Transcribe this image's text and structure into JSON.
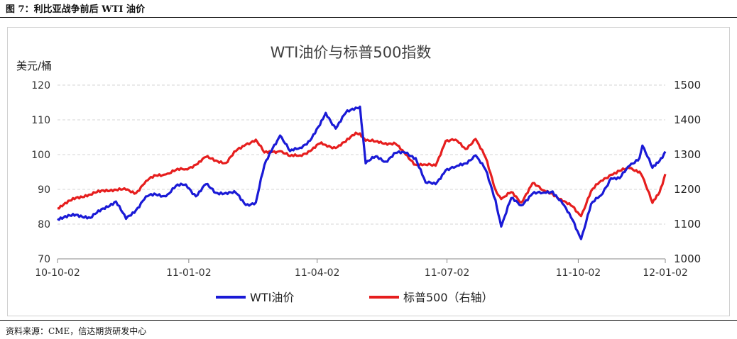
{
  "figure_label": "图 7：利比亚战争前后 WTI 油价",
  "source_note": "资料来源：CME，信达期货研发中心",
  "colors": {
    "wti": "#1a1ad6",
    "spx": "#e61e1e",
    "grid": "#d4d4d4",
    "axis": "#888888"
  },
  "chart_data": {
    "type": "line",
    "title": "WTI油价与标普500指数",
    "ylabel_left": "美元/桶",
    "ylabel_right": "",
    "ylim_left": [
      70,
      120
    ],
    "ylim_right": [
      1000,
      1500
    ],
    "yticks_left": [
      "70",
      "80",
      "90",
      "100",
      "110",
      "120"
    ],
    "yticks_right": [
      "1000",
      "1100",
      "1200",
      "1300",
      "1400",
      "1500"
    ],
    "xlim": [
      "2010-10-02",
      "2011-12-02"
    ],
    "xticks": [
      "10-10-02",
      "11-01-02",
      "11-04-02",
      "11-07-02",
      "11-10-02",
      "12-01-02"
    ],
    "grid": true,
    "legend_position": "bottom",
    "series": [
      {
        "name": "WTI油价",
        "axis": "left",
        "points": [
          [
            "2010-10-02",
            81.5
          ],
          [
            "2010-10-15",
            82.7
          ],
          [
            "2010-10-25",
            81.8
          ],
          [
            "2010-11-03",
            84.5
          ],
          [
            "2010-11-12",
            86.5
          ],
          [
            "2010-11-19",
            81.5
          ],
          [
            "2010-11-26",
            84.0
          ],
          [
            "2010-12-03",
            88.0
          ],
          [
            "2010-12-10",
            88.5
          ],
          [
            "2010-12-17",
            88.0
          ],
          [
            "2010-12-24",
            91.0
          ],
          [
            "2010-12-31",
            91.4
          ],
          [
            "2011-01-07",
            88.0
          ],
          [
            "2011-01-14",
            91.5
          ],
          [
            "2011-01-21",
            89.0
          ],
          [
            "2011-01-28",
            89.0
          ],
          [
            "2011-02-04",
            89.0
          ],
          [
            "2011-02-11",
            85.5
          ],
          [
            "2011-02-18",
            86.2
          ],
          [
            "2011-02-24",
            97.0
          ],
          [
            "2011-03-02",
            102.0
          ],
          [
            "2011-03-07",
            105.5
          ],
          [
            "2011-03-14",
            101.0
          ],
          [
            "2011-03-21",
            102.0
          ],
          [
            "2011-03-28",
            104.0
          ],
          [
            "2011-04-04",
            108.5
          ],
          [
            "2011-04-08",
            112.0
          ],
          [
            "2011-04-15",
            107.5
          ],
          [
            "2011-04-22",
            112.0
          ],
          [
            "2011-04-29",
            113.5
          ],
          [
            "2011-05-02",
            113.8
          ],
          [
            "2011-05-06",
            97.5
          ],
          [
            "2011-05-13",
            99.5
          ],
          [
            "2011-05-20",
            98.0
          ],
          [
            "2011-05-27",
            100.5
          ],
          [
            "2011-06-03",
            100.5
          ],
          [
            "2011-06-10",
            99.0
          ],
          [
            "2011-06-17",
            92.0
          ],
          [
            "2011-06-24",
            91.5
          ],
          [
            "2011-07-01",
            95.5
          ],
          [
            "2011-07-08",
            96.5
          ],
          [
            "2011-07-15",
            97.5
          ],
          [
            "2011-07-22",
            99.8
          ],
          [
            "2011-07-29",
            95.7
          ],
          [
            "2011-08-05",
            86.9
          ],
          [
            "2011-08-09",
            79.3
          ],
          [
            "2011-08-16",
            87.5
          ],
          [
            "2011-08-23",
            85.4
          ],
          [
            "2011-08-31",
            88.8
          ],
          [
            "2011-09-07",
            89.0
          ],
          [
            "2011-09-14",
            89.4
          ],
          [
            "2011-09-21",
            85.9
          ],
          [
            "2011-09-28",
            81.2
          ],
          [
            "2011-10-04",
            75.7
          ],
          [
            "2011-10-11",
            85.8
          ],
          [
            "2011-10-18",
            88.3
          ],
          [
            "2011-10-25",
            93.2
          ],
          [
            "2011-10-31",
            93.2
          ],
          [
            "2011-11-07",
            96.8
          ],
          [
            "2011-11-14",
            99.1
          ],
          [
            "2011-11-16",
            102.6
          ],
          [
            "2011-11-23",
            96.2
          ],
          [
            "2011-11-28",
            98.2
          ],
          [
            "2011-12-02",
            100.9
          ]
        ]
      },
      {
        "name": "标普500（右轴）",
        "axis": "right",
        "points": [
          [
            "2010-10-02",
            1146
          ],
          [
            "2010-10-15",
            1176
          ],
          [
            "2010-10-25",
            1185
          ],
          [
            "2010-11-03",
            1197
          ],
          [
            "2010-11-12",
            1199
          ],
          [
            "2010-11-19",
            1199
          ],
          [
            "2010-11-26",
            1189
          ],
          [
            "2010-12-03",
            1224
          ],
          [
            "2010-12-10",
            1240
          ],
          [
            "2010-12-17",
            1243
          ],
          [
            "2010-12-24",
            1256
          ],
          [
            "2010-12-31",
            1258
          ],
          [
            "2011-01-07",
            1271
          ],
          [
            "2011-01-14",
            1293
          ],
          [
            "2011-01-21",
            1283
          ],
          [
            "2011-01-28",
            1276
          ],
          [
            "2011-02-04",
            1310
          ],
          [
            "2011-02-11",
            1329
          ],
          [
            "2011-02-18",
            1343
          ],
          [
            "2011-02-24",
            1306
          ],
          [
            "2011-03-02",
            1308
          ],
          [
            "2011-03-07",
            1310
          ],
          [
            "2011-03-14",
            1296
          ],
          [
            "2011-03-21",
            1298
          ],
          [
            "2011-03-28",
            1310
          ],
          [
            "2011-04-04",
            1332
          ],
          [
            "2011-04-08",
            1328
          ],
          [
            "2011-04-15",
            1319
          ],
          [
            "2011-04-22",
            1337
          ],
          [
            "2011-04-29",
            1363
          ],
          [
            "2011-05-02",
            1361
          ],
          [
            "2011-05-06",
            1340
          ],
          [
            "2011-05-13",
            1338
          ],
          [
            "2011-05-20",
            1333
          ],
          [
            "2011-05-27",
            1331
          ],
          [
            "2011-06-03",
            1300
          ],
          [
            "2011-06-10",
            1271
          ],
          [
            "2011-06-17",
            1271
          ],
          [
            "2011-06-24",
            1268
          ],
          [
            "2011-07-01",
            1339
          ],
          [
            "2011-07-08",
            1343
          ],
          [
            "2011-07-15",
            1316
          ],
          [
            "2011-07-22",
            1345
          ],
          [
            "2011-07-29",
            1292
          ],
          [
            "2011-08-05",
            1199
          ],
          [
            "2011-08-09",
            1172
          ],
          [
            "2011-08-16",
            1192
          ],
          [
            "2011-08-23",
            1162
          ],
          [
            "2011-08-31",
            1218
          ],
          [
            "2011-09-07",
            1198
          ],
          [
            "2011-09-14",
            1188
          ],
          [
            "2011-09-21",
            1166
          ],
          [
            "2011-09-28",
            1151
          ],
          [
            "2011-10-04",
            1123
          ],
          [
            "2011-10-11",
            1195
          ],
          [
            "2011-10-18",
            1225
          ],
          [
            "2011-10-25",
            1242
          ],
          [
            "2011-10-31",
            1253
          ],
          [
            "2011-11-07",
            1261
          ],
          [
            "2011-11-14",
            1251
          ],
          [
            "2011-11-16",
            1237
          ],
          [
            "2011-11-23",
            1161
          ],
          [
            "2011-11-28",
            1192
          ],
          [
            "2011-12-02",
            1244
          ]
        ]
      }
    ]
  }
}
